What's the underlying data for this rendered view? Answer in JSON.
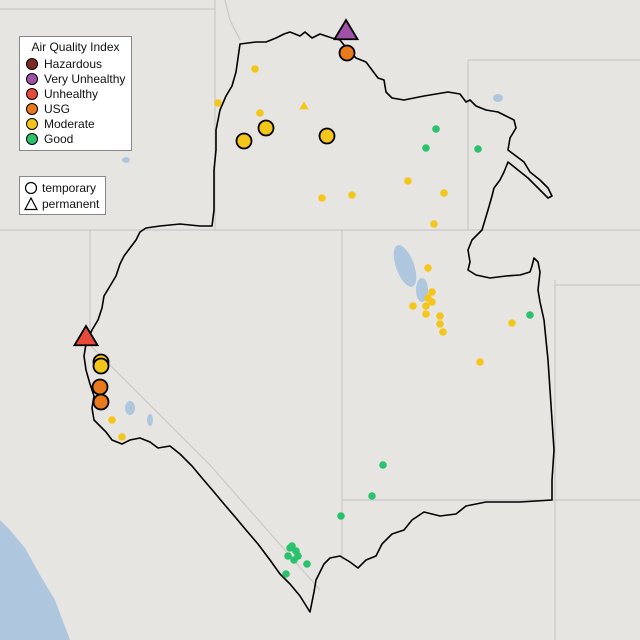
{
  "legend": {
    "title": "Air Quality Index",
    "categories": [
      {
        "label": "Hazardous",
        "color": "#7e2b26"
      },
      {
        "label": "Very Unhealthy",
        "color": "#9e53a8"
      },
      {
        "label": "Unhealthy",
        "color": "#e84b3c"
      },
      {
        "label": "USG",
        "color": "#e8791c"
      },
      {
        "label": "Moderate",
        "color": "#f4c51a"
      },
      {
        "label": "Good",
        "color": "#2bc26e"
      }
    ]
  },
  "type_legend": {
    "items": [
      {
        "label": "temporary",
        "icon": "circle-icon"
      },
      {
        "label": "permanent",
        "icon": "triangle-icon"
      }
    ]
  },
  "colors": {
    "land": "#e7e5e2",
    "water": "#aec7df",
    "state_line": "#c8c8c8",
    "boundary": "#000000"
  }
}
